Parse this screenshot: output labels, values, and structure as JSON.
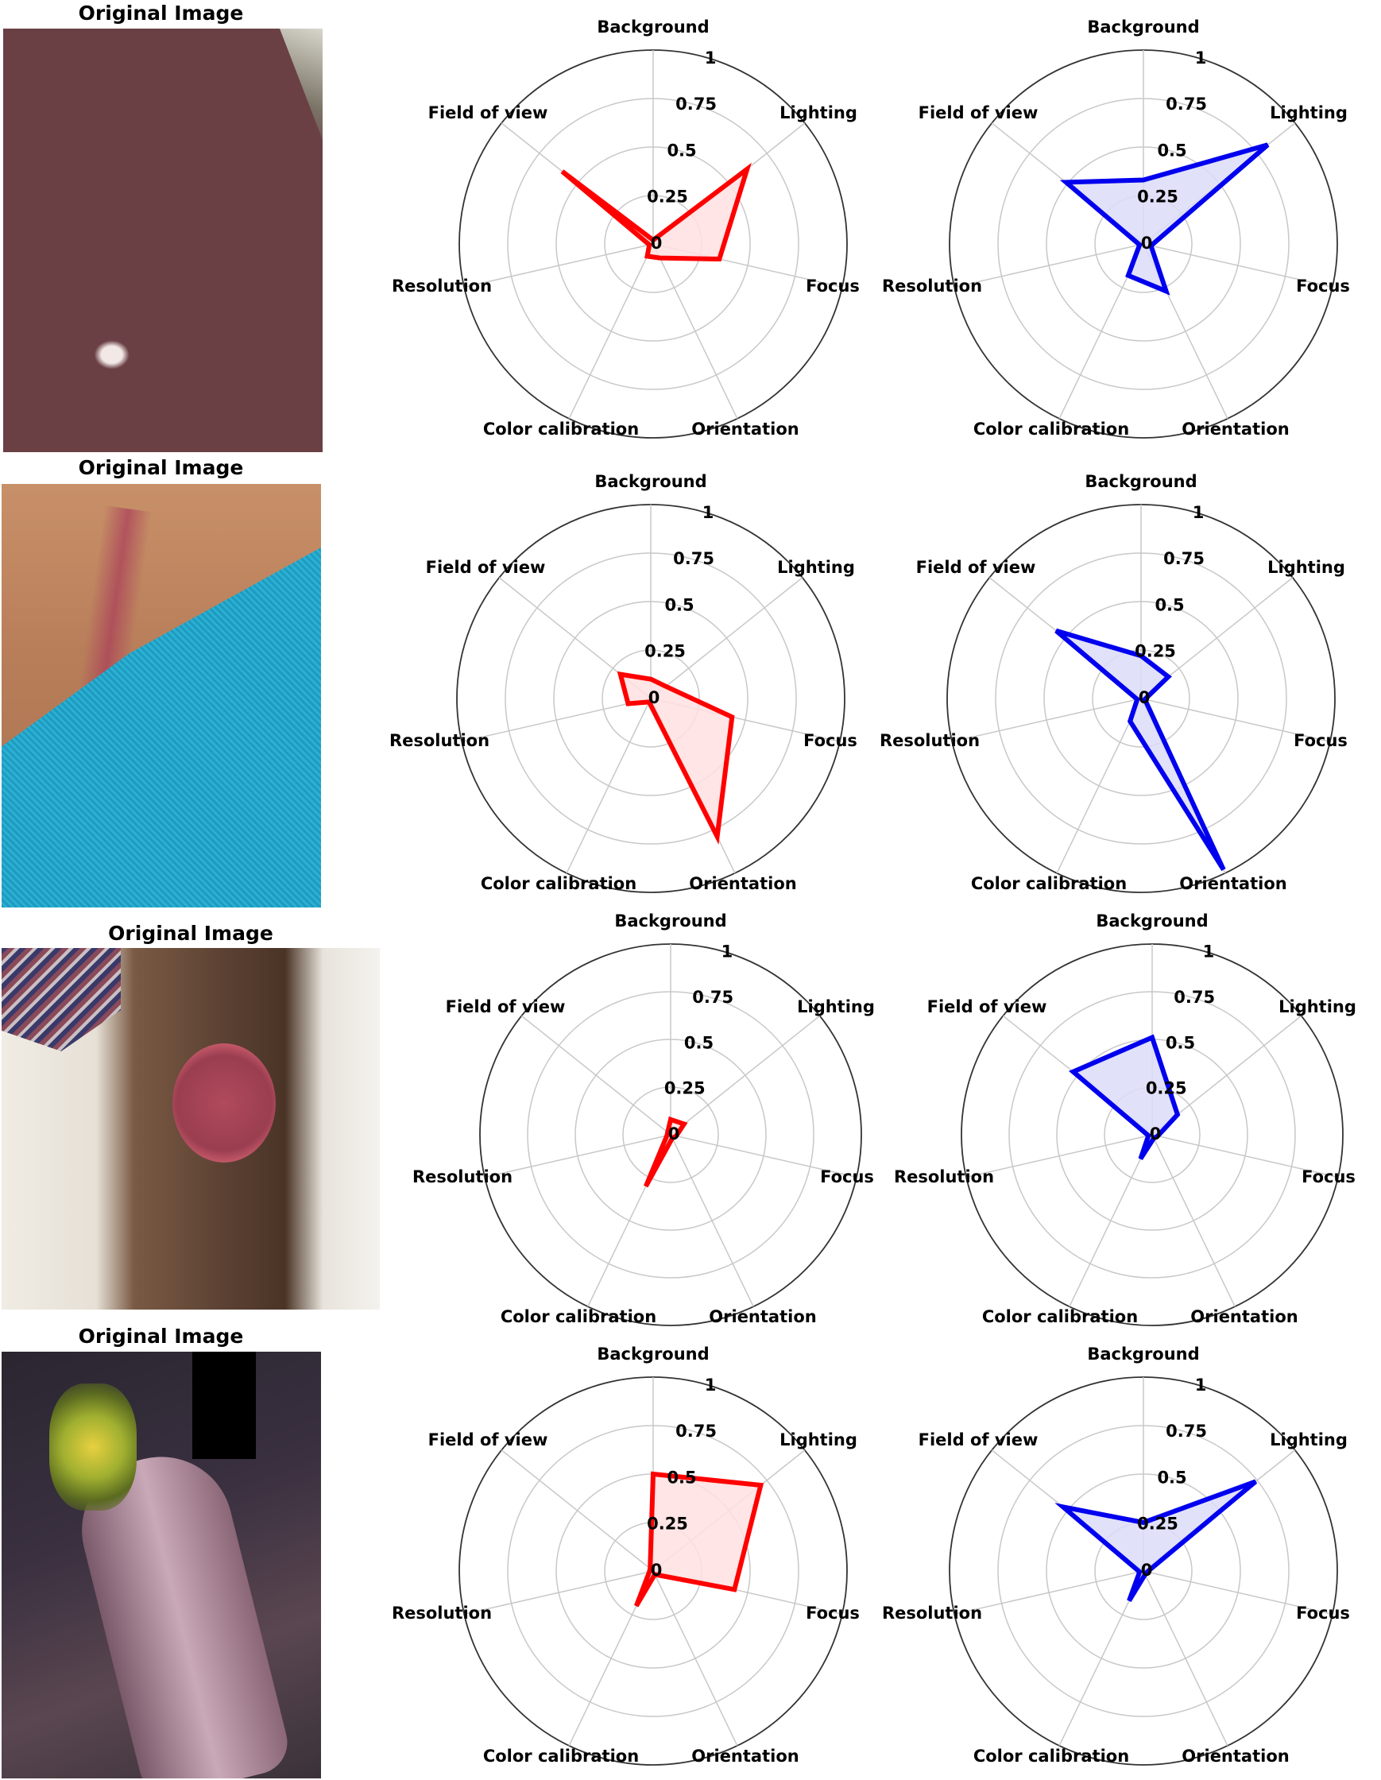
{
  "row_title": "Original Image",
  "axes": [
    "Background",
    "Lighting",
    "Focus",
    "Orientation",
    "Color calibration",
    "Resolution",
    "Field of view"
  ],
  "ticks": [
    "0",
    "0.25",
    "0.5",
    "0.75",
    "1"
  ],
  "colors": {
    "red_line": "#ff0000",
    "red_fill": "#ffe0e0",
    "blue_line": "#0000ee",
    "blue_fill": "#dcdcf8",
    "grid": "#c8c8c8",
    "outer": "#333333"
  },
  "chart_data": [
    {
      "type": "radar",
      "row": 1,
      "column": "left",
      "color": "red",
      "rlim": [
        0,
        1
      ],
      "categories": [
        "Background",
        "Lighting",
        "Focus",
        "Orientation",
        "Color calibration",
        "Resolution",
        "Field of view"
      ],
      "values": [
        0.02,
        0.62,
        0.35,
        0.08,
        0.07,
        0.02,
        0.6
      ]
    },
    {
      "type": "radar",
      "row": 1,
      "column": "right",
      "color": "blue",
      "rlim": [
        0,
        1
      ],
      "categories": [
        "Background",
        "Lighting",
        "Focus",
        "Orientation",
        "Color calibration",
        "Resolution",
        "Field of view"
      ],
      "values": [
        0.33,
        0.82,
        0.04,
        0.27,
        0.18,
        0.02,
        0.51
      ]
    },
    {
      "type": "radar",
      "row": 2,
      "column": "left",
      "color": "red",
      "rlim": [
        0,
        1
      ],
      "categories": [
        "Background",
        "Lighting",
        "Focus",
        "Orientation",
        "Color calibration",
        "Resolution",
        "Field of view"
      ],
      "values": [
        0.1,
        0.1,
        0.43,
        0.79,
        0.02,
        0.12,
        0.2
      ]
    },
    {
      "type": "radar",
      "row": 2,
      "column": "right",
      "color": "blue",
      "rlim": [
        0,
        1
      ],
      "categories": [
        "Background",
        "Lighting",
        "Focus",
        "Orientation",
        "Color calibration",
        "Resolution",
        "Field of view"
      ],
      "values": [
        0.22,
        0.18,
        0.02,
        0.98,
        0.13,
        0.02,
        0.56
      ]
    },
    {
      "type": "radar",
      "row": 3,
      "column": "left",
      "color": "red",
      "rlim": [
        0,
        1
      ],
      "categories": [
        "Background",
        "Lighting",
        "Focus",
        "Orientation",
        "Color calibration",
        "Resolution",
        "Field of view"
      ],
      "values": [
        0.08,
        0.09,
        0.03,
        0.02,
        0.3,
        0.02,
        0.02
      ]
    },
    {
      "type": "radar",
      "row": 3,
      "column": "right",
      "color": "blue",
      "rlim": [
        0,
        1
      ],
      "categories": [
        "Background",
        "Lighting",
        "Focus",
        "Orientation",
        "Color calibration",
        "Resolution",
        "Field of view"
      ],
      "values": [
        0.51,
        0.17,
        0.03,
        0.02,
        0.14,
        0.02,
        0.53
      ]
    },
    {
      "type": "radar",
      "row": 4,
      "column": "left",
      "color": "red",
      "rlim": [
        0,
        1
      ],
      "categories": [
        "Background",
        "Lighting",
        "Focus",
        "Orientation",
        "Color calibration",
        "Resolution",
        "Field of view"
      ],
      "values": [
        0.5,
        0.71,
        0.43,
        0.02,
        0.2,
        0.02,
        0.02
      ]
    },
    {
      "type": "radar",
      "row": 4,
      "column": "right",
      "color": "blue",
      "rlim": [
        0,
        1
      ],
      "categories": [
        "Background",
        "Lighting",
        "Focus",
        "Orientation",
        "Color calibration",
        "Resolution",
        "Field of view"
      ],
      "values": [
        0.25,
        0.74,
        0.02,
        0.02,
        0.17,
        0.02,
        0.53
      ]
    }
  ]
}
